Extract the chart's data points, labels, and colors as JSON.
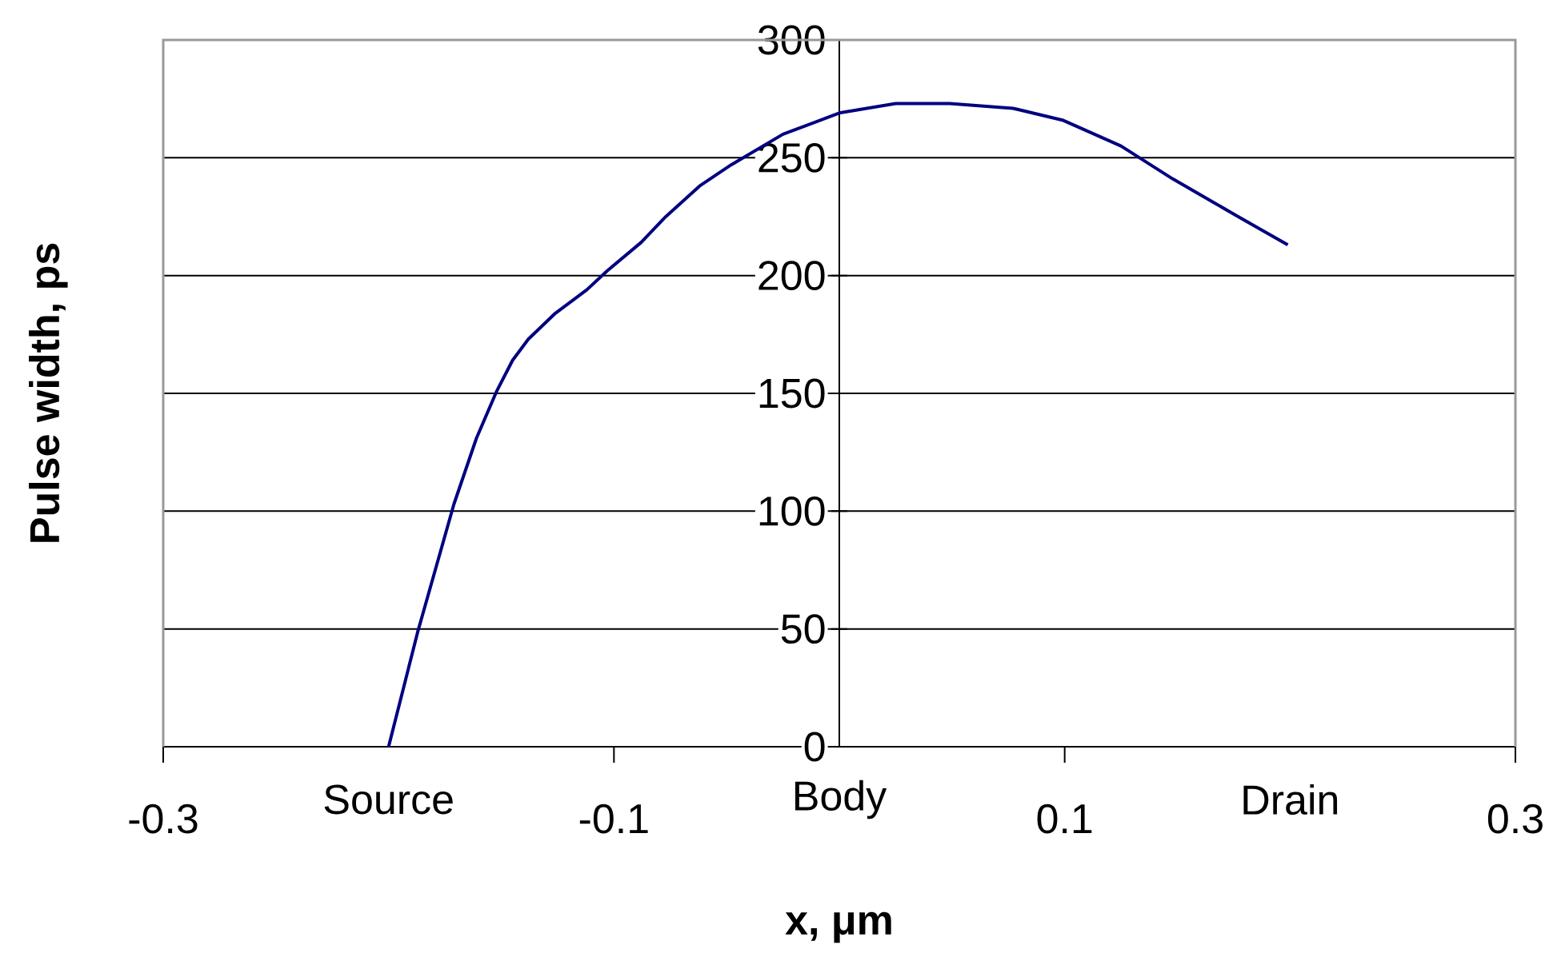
{
  "chart_data": {
    "type": "line",
    "xlabel": "x, μm",
    "ylabel": "Pulse width, ps",
    "xlim": [
      -0.3,
      0.3
    ],
    "ylim": [
      0,
      300
    ],
    "xticks": [
      -0.3,
      -0.1,
      0.1,
      0.3
    ],
    "yticks": [
      0,
      50,
      100,
      150,
      200,
      250,
      300
    ],
    "grid": "y",
    "annotations": [
      "Source",
      "Body",
      "Drain"
    ],
    "series": [
      {
        "color": "#000080",
        "x": [
          -0.2,
          -0.187,
          -0.171,
          -0.161,
          -0.152,
          -0.145,
          -0.138,
          -0.126,
          -0.112,
          -0.103,
          -0.088,
          -0.077,
          -0.062,
          -0.048,
          -0.025,
          0,
          0.025,
          0.049,
          0.077,
          0.099,
          0.125,
          0.148,
          0.177,
          0.199
        ],
        "values": [
          0,
          49,
          103,
          131,
          151,
          164,
          173,
          184,
          194,
          202,
          214,
          225,
          238,
          247,
          260,
          269,
          273,
          273,
          271,
          266,
          255,
          241,
          225,
          213
        ]
      }
    ]
  }
}
